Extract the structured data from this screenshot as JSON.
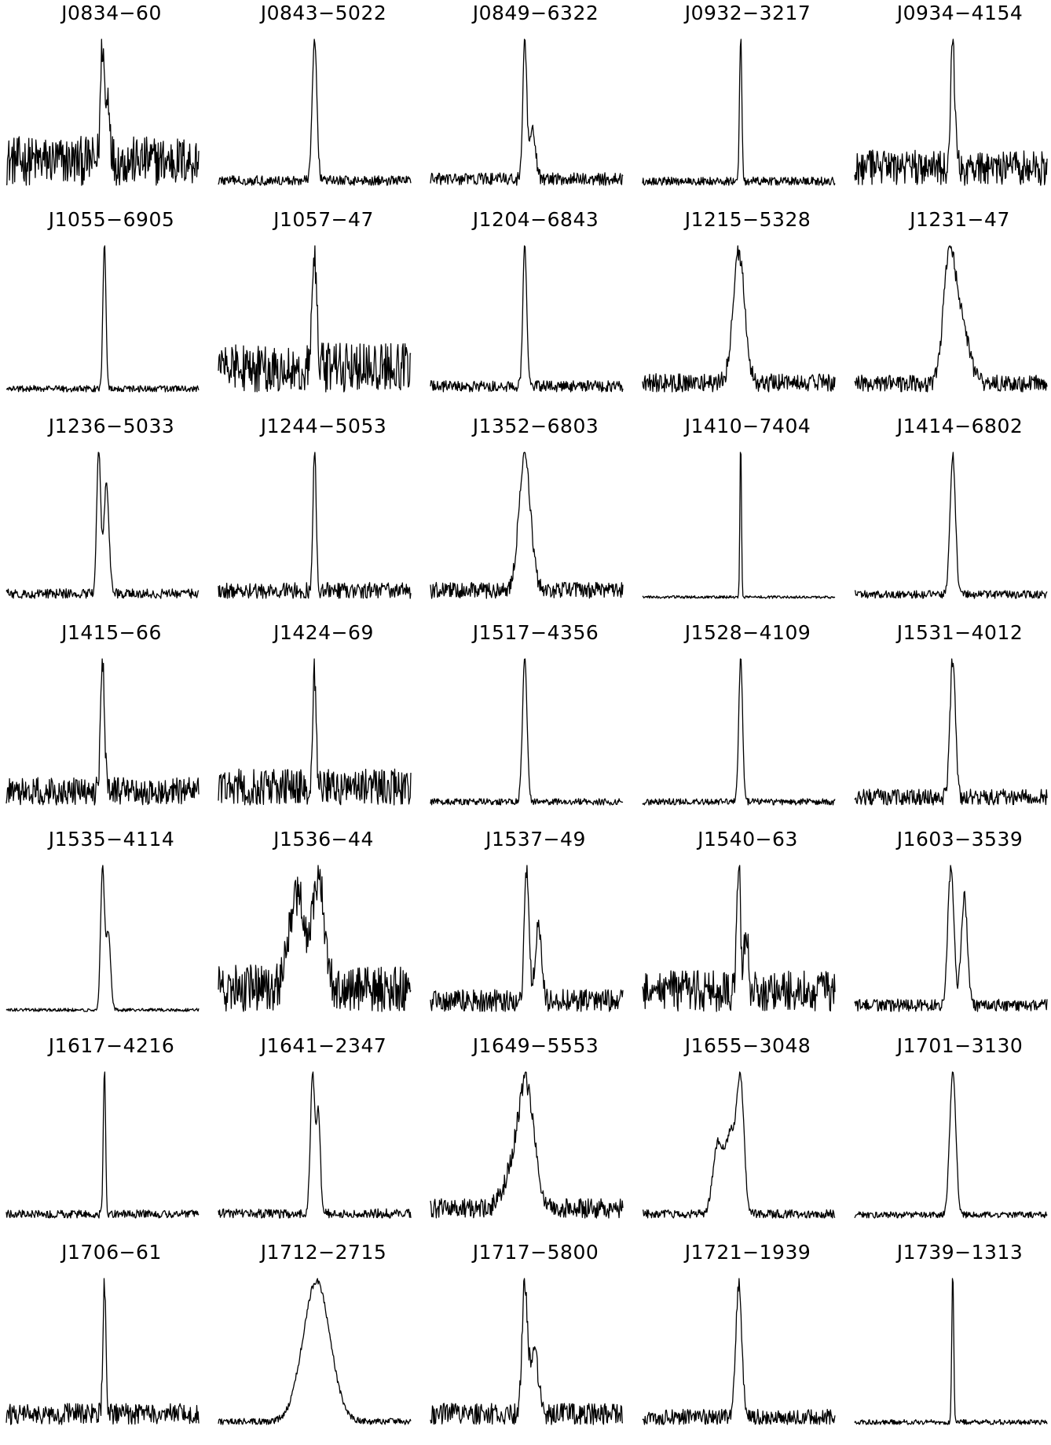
{
  "chart_data": {
    "type": "line",
    "layout": "small-multiples",
    "rows": 7,
    "columns": 5,
    "title": "",
    "xlabel": "",
    "ylabel": "",
    "axes": "none",
    "grid": false,
    "legend": "none",
    "panels": [
      {
        "name": "J0834−60",
        "peaks": [
          {
            "x": 0.5,
            "w": 0.01,
            "a": 1.0
          },
          {
            "x": 0.53,
            "w": 0.01,
            "a": 0.55
          }
        ],
        "noise": 0.17,
        "baseline": 0.18
      },
      {
        "name": "J0843−5022",
        "peaks": [
          {
            "x": 0.5,
            "w": 0.012,
            "a": 1.0
          }
        ],
        "noise": 0.03,
        "baseline": 0.12
      },
      {
        "name": "J0849−6322",
        "peaks": [
          {
            "x": 0.49,
            "w": 0.01,
            "a": 1.0
          },
          {
            "x": 0.53,
            "w": 0.016,
            "a": 0.35
          }
        ],
        "noise": 0.04,
        "baseline": 0.13
      },
      {
        "name": "J0932−3217",
        "peaks": [
          {
            "x": 0.51,
            "w": 0.006,
            "a": 1.0
          }
        ],
        "noise": 0.025,
        "baseline": 0.14
      },
      {
        "name": "J0934−4154",
        "peaks": [
          {
            "x": 0.51,
            "w": 0.01,
            "a": 1.0
          }
        ],
        "noise": 0.11,
        "baseline": 0.18
      },
      {
        "name": "J1055−6905",
        "peaks": [
          {
            "x": 0.51,
            "w": 0.008,
            "a": 1.0
          }
        ],
        "noise": 0.02,
        "baseline": 0.11
      },
      {
        "name": "J1057−47",
        "peaks": [
          {
            "x": 0.5,
            "w": 0.012,
            "a": 1.0
          }
        ],
        "noise": 0.18,
        "baseline": 0.18
      },
      {
        "name": "J1204−6843",
        "peaks": [
          {
            "x": 0.49,
            "w": 0.01,
            "a": 1.0
          }
        ],
        "noise": 0.035,
        "baseline": 0.12
      },
      {
        "name": "J1215−5328",
        "peaks": [
          {
            "x": 0.5,
            "w": 0.03,
            "a": 1.0
          }
        ],
        "noise": 0.06,
        "baseline": 0.14
      },
      {
        "name": "J1231−47",
        "peaks": [
          {
            "x": 0.49,
            "w": 0.03,
            "a": 0.95
          },
          {
            "x": 0.55,
            "w": 0.04,
            "a": 0.55
          }
        ],
        "noise": 0.06,
        "baseline": 0.16
      },
      {
        "name": "J1236−5033",
        "peaks": [
          {
            "x": 0.48,
            "w": 0.01,
            "a": 1.0
          },
          {
            "x": 0.52,
            "w": 0.014,
            "a": 0.75
          }
        ],
        "noise": 0.03,
        "baseline": 0.11
      },
      {
        "name": "J1244−5053",
        "peaks": [
          {
            "x": 0.5,
            "w": 0.008,
            "a": 1.0
          }
        ],
        "noise": 0.05,
        "baseline": 0.11
      },
      {
        "name": "J1352−6803",
        "peaks": [
          {
            "x": 0.49,
            "w": 0.03,
            "a": 1.0
          }
        ],
        "noise": 0.05,
        "baseline": 0.16
      },
      {
        "name": "J1410−7404",
        "peaks": [
          {
            "x": 0.51,
            "w": 0.004,
            "a": 1.0
          }
        ],
        "noise": 0.008,
        "baseline": 0.07
      },
      {
        "name": "J1414−6802",
        "peaks": [
          {
            "x": 0.51,
            "w": 0.014,
            "a": 1.0
          }
        ],
        "noise": 0.025,
        "baseline": 0.12
      },
      {
        "name": "J1415−66",
        "peaks": [
          {
            "x": 0.5,
            "w": 0.01,
            "a": 1.0
          }
        ],
        "noise": 0.09,
        "baseline": 0.15
      },
      {
        "name": "J1424−69",
        "peaks": [
          {
            "x": 0.5,
            "w": 0.008,
            "a": 1.0
          }
        ],
        "noise": 0.13,
        "baseline": 0.18
      },
      {
        "name": "J1517−4356",
        "peaks": [
          {
            "x": 0.49,
            "w": 0.012,
            "a": 1.0
          }
        ],
        "noise": 0.02,
        "baseline": 0.11
      },
      {
        "name": "J1528−4109",
        "peaks": [
          {
            "x": 0.51,
            "w": 0.01,
            "a": 1.0
          }
        ],
        "noise": 0.02,
        "baseline": 0.11
      },
      {
        "name": "J1531−4012",
        "peaks": [
          {
            "x": 0.51,
            "w": 0.014,
            "a": 1.0
          }
        ],
        "noise": 0.05,
        "baseline": 0.14
      },
      {
        "name": "J1535−4114",
        "peaks": [
          {
            "x": 0.5,
            "w": 0.01,
            "a": 1.0
          },
          {
            "x": 0.53,
            "w": 0.012,
            "a": 0.55
          }
        ],
        "noise": 0.01,
        "baseline": 0.11
      },
      {
        "name": "J1536−44",
        "peaks": [
          {
            "x": 0.41,
            "w": 0.04,
            "a": 0.75
          },
          {
            "x": 0.52,
            "w": 0.03,
            "a": 0.85
          }
        ],
        "noise": 0.15,
        "baseline": 0.2
      },
      {
        "name": "J1537−49",
        "peaks": [
          {
            "x": 0.5,
            "w": 0.012,
            "a": 1.0
          },
          {
            "x": 0.56,
            "w": 0.016,
            "a": 0.55
          }
        ],
        "noise": 0.07,
        "baseline": 0.17
      },
      {
        "name": "J1540−63",
        "peaks": [
          {
            "x": 0.5,
            "w": 0.01,
            "a": 1.0
          },
          {
            "x": 0.54,
            "w": 0.01,
            "a": 0.55
          }
        ],
        "noise": 0.14,
        "baseline": 0.18
      },
      {
        "name": "J1603−3539",
        "peaks": [
          {
            "x": 0.5,
            "w": 0.016,
            "a": 1.0
          },
          {
            "x": 0.57,
            "w": 0.016,
            "a": 0.8
          }
        ],
        "noise": 0.04,
        "baseline": 0.13
      },
      {
        "name": "J1617−4216",
        "peaks": [
          {
            "x": 0.51,
            "w": 0.006,
            "a": 1.0
          }
        ],
        "noise": 0.025,
        "baseline": 0.11
      },
      {
        "name": "J1641−2347",
        "peaks": [
          {
            "x": 0.49,
            "w": 0.012,
            "a": 1.0
          },
          {
            "x": 0.52,
            "w": 0.01,
            "a": 0.7
          }
        ],
        "noise": 0.03,
        "baseline": 0.11
      },
      {
        "name": "J1649−5553",
        "peaks": [
          {
            "x": 0.5,
            "w": 0.04,
            "a": 0.95
          },
          {
            "x": 0.43,
            "w": 0.05,
            "a": 0.3
          }
        ],
        "noise": 0.07,
        "baseline": 0.16
      },
      {
        "name": "J1655−3048",
        "peaks": [
          {
            "x": 0.39,
            "w": 0.025,
            "a": 0.45
          },
          {
            "x": 0.46,
            "w": 0.03,
            "a": 0.55
          },
          {
            "x": 0.51,
            "w": 0.018,
            "a": 0.8
          }
        ],
        "noise": 0.025,
        "baseline": 0.12
      },
      {
        "name": "J1701−3130",
        "peaks": [
          {
            "x": 0.51,
            "w": 0.016,
            "a": 1.0
          }
        ],
        "noise": 0.02,
        "baseline": 0.11
      },
      {
        "name": "J1706−61",
        "peaks": [
          {
            "x": 0.51,
            "w": 0.008,
            "a": 1.0
          }
        ],
        "noise": 0.07,
        "baseline": 0.16
      },
      {
        "name": "J1712−2715",
        "peaks": [
          {
            "x": 0.51,
            "w": 0.07,
            "a": 1.0
          }
        ],
        "noise": 0.02,
        "baseline": 0.1
      },
      {
        "name": "J1717−5800",
        "peaks": [
          {
            "x": 0.49,
            "w": 0.014,
            "a": 1.0
          },
          {
            "x": 0.54,
            "w": 0.02,
            "a": 0.5
          }
        ],
        "noise": 0.07,
        "baseline": 0.16
      },
      {
        "name": "J1721−1939",
        "peaks": [
          {
            "x": 0.5,
            "w": 0.016,
            "a": 1.0
          }
        ],
        "noise": 0.05,
        "baseline": 0.14
      },
      {
        "name": "J1739−1313",
        "peaks": [
          {
            "x": 0.51,
            "w": 0.005,
            "a": 1.0
          }
        ],
        "noise": 0.015,
        "baseline": 0.1
      }
    ]
  }
}
